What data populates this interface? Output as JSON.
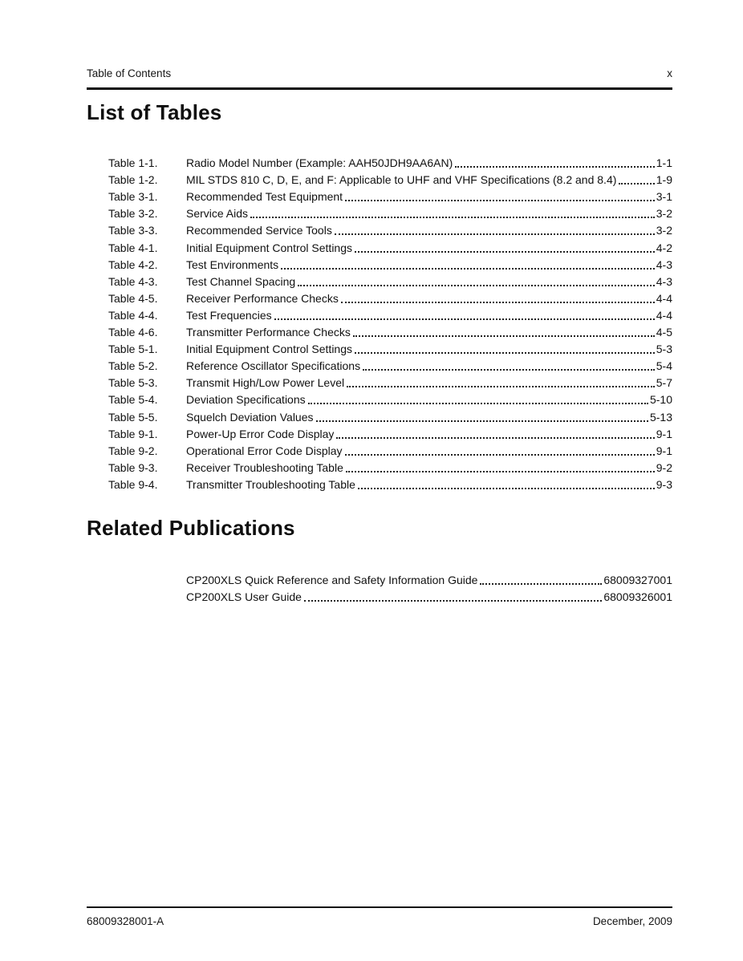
{
  "header": {
    "left": "Table of Contents",
    "page_number": "x"
  },
  "headings": {
    "list_of_tables": "List of Tables",
    "related_publications": "Related Publications"
  },
  "tables": [
    {
      "label": "Table 1-1.",
      "title": "Radio Model Number (Example: AAH50JDH9AA6AN)",
      "page": "1-1"
    },
    {
      "label": "Table 1-2.",
      "title": "MIL STDS 810 C, D, E, and F: Applicable to UHF and VHF Specifications (8.2 and 8.4)",
      "page": "1-9"
    },
    {
      "label": "Table 3-1.",
      "title": "Recommended Test Equipment",
      "page": "3-1"
    },
    {
      "label": "Table 3-2.",
      "title": "Service Aids",
      "page": "3-2"
    },
    {
      "label": "Table 3-3.",
      "title": "Recommended Service Tools",
      "page": "3-2"
    },
    {
      "label": "Table 4-1.",
      "title": "Initial Equipment Control Settings",
      "page": "4-2"
    },
    {
      "label": "Table 4-2.",
      "title": "Test Environments",
      "page": "4-3"
    },
    {
      "label": "Table 4-3.",
      "title": "Test Channel Spacing",
      "page": "4-3"
    },
    {
      "label": "Table 4-5.",
      "title": "Receiver Performance Checks",
      "page": "4-4"
    },
    {
      "label": "Table 4-4.",
      "title": "Test Frequencies",
      "page": "4-4"
    },
    {
      "label": "Table 4-6.",
      "title": "Transmitter Performance Checks",
      "page": "4-5"
    },
    {
      "label": "Table 5-1.",
      "title": "Initial Equipment Control Settings",
      "page": "5-3"
    },
    {
      "label": "Table 5-2.",
      "title": "Reference Oscillator Specifications",
      "page": "5-4"
    },
    {
      "label": "Table 5-3.",
      "title": "Transmit High/Low Power Level",
      "page": "5-7"
    },
    {
      "label": "Table 5-4.",
      "title": "Deviation Specifications",
      "page": "5-10"
    },
    {
      "label": "Table 5-5.",
      "title": "Squelch Deviation Values",
      "page": "5-13"
    },
    {
      "label": "Table 9-1.",
      "title": "Power-Up Error Code Display",
      "page": "9-1"
    },
    {
      "label": "Table 9-2.",
      "title": "Operational Error Code Display",
      "page": "9-1"
    },
    {
      "label": "Table 9-3.",
      "title": "Receiver Troubleshooting Table",
      "page": "9-2"
    },
    {
      "label": "Table 9-4.",
      "title": "Transmitter Troubleshooting Table",
      "page": "9-3"
    }
  ],
  "related_publications": [
    {
      "title": "CP200XLS Quick Reference and Safety Information Guide",
      "page": "68009327001"
    },
    {
      "title": "CP200XLS User Guide",
      "page": "68009326001"
    }
  ],
  "footer": {
    "left": "68009328001-A",
    "right": "December, 2009"
  }
}
